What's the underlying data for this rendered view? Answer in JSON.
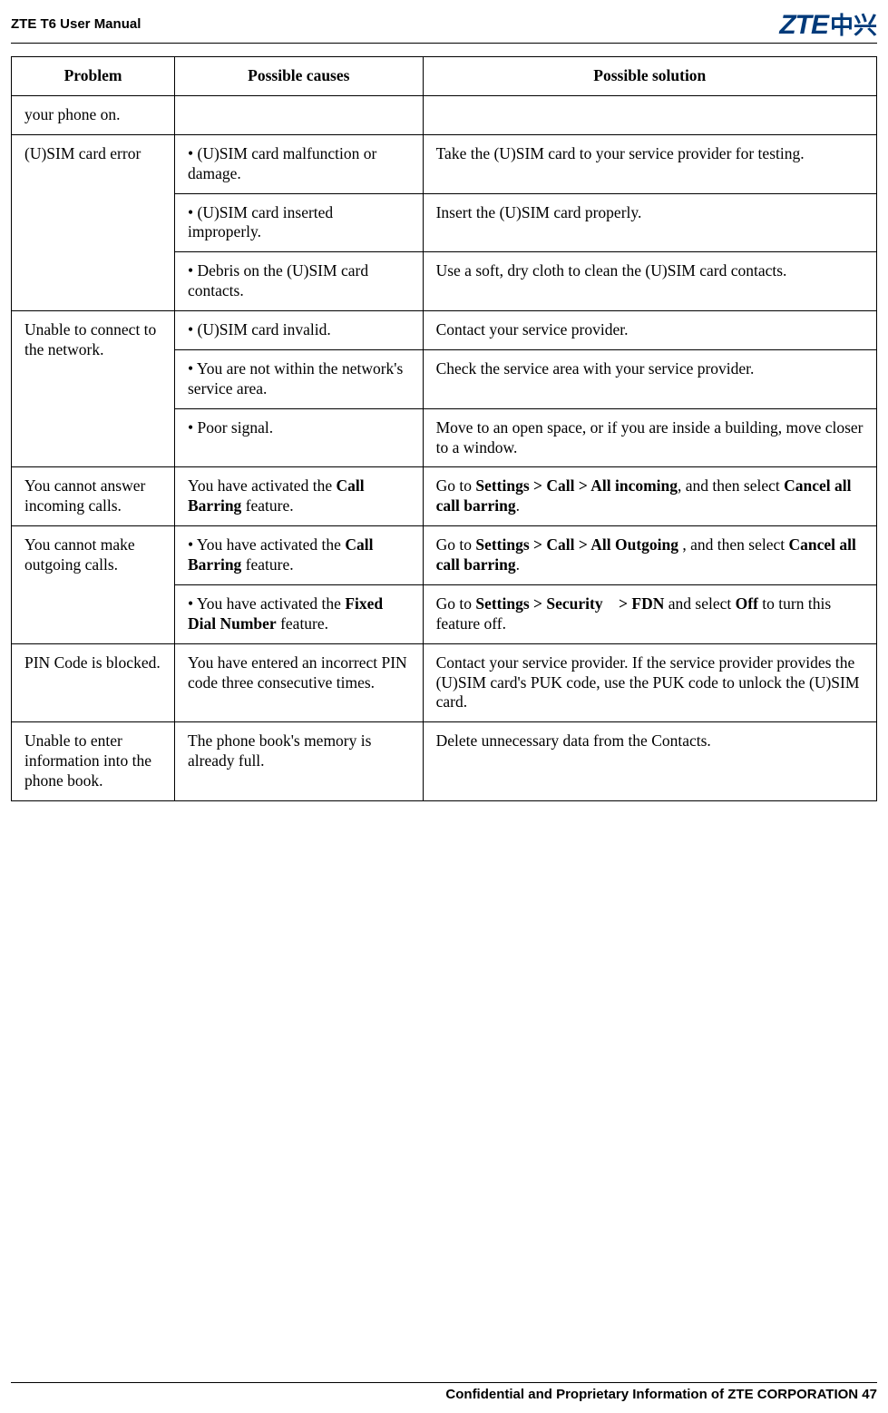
{
  "header": {
    "title": "ZTE T6 User Manual",
    "logo_latin": "ZTE",
    "logo_cn": "中兴"
  },
  "table": {
    "head": {
      "problem": "Problem",
      "causes": "Possible causes",
      "solution": "Possible solution"
    },
    "rows": {
      "r1": {
        "problem": "your phone on.",
        "cause": "",
        "solution": ""
      },
      "r2": {
        "problem": "(U)SIM card error",
        "c1": {
          "cause": "• (U)SIM card malfunction or damage.",
          "solution": "Take the (U)SIM card to your service provider for testing."
        },
        "c2": {
          "cause": "• (U)SIM card inserted improperly.",
          "solution": "Insert the (U)SIM card properly."
        },
        "c3": {
          "cause": "• Debris on the (U)SIM card contacts.",
          "solution": "Use a soft, dry cloth to clean the (U)SIM card contacts."
        }
      },
      "r3": {
        "problem": "Unable to connect to the network.",
        "c1": {
          "cause": "• (U)SIM card invalid.",
          "solution": "Contact your service provider."
        },
        "c2": {
          "cause": "• You are not within the network's service area.",
          "solution": "Check the service area with your service provider."
        },
        "c3": {
          "cause": "• Poor signal.",
          "solution": "Move to an open space, or if you are inside a building, move closer to a window."
        }
      },
      "r4": {
        "problem": "You cannot answer incoming calls.",
        "cause_pre": "You have activated the ",
        "cause_b": "Call Barring",
        "cause_post": " feature.",
        "sol_pre": "Go to ",
        "sol_b1": "Settings > Call > All incoming",
        "sol_mid": ", and then select ",
        "sol_b2": "Cancel all call barring",
        "sol_post": "."
      },
      "r5": {
        "problem": "You cannot make outgoing calls.",
        "c1": {
          "cause_pre": "• You have activated the ",
          "cause_b": "Call Barring",
          "cause_post": " feature.",
          "sol_pre": "Go to ",
          "sol_b1": "Settings > Call > All Outgoing ",
          "sol_mid": ", and then select ",
          "sol_b2": "Cancel all call barring",
          "sol_post": "."
        },
        "c2": {
          "cause_pre": "• You have activated the ",
          "cause_b": "Fixed Dial Number",
          "cause_post": " feature.",
          "sol_pre": "Go to ",
          "sol_b1": "Settings > Security > FDN",
          "sol_mid": " and select ",
          "sol_b2": "Off",
          "sol_post": " to turn this feature off."
        }
      },
      "r6": {
        "problem": "PIN Code is blocked.",
        "cause": "You have entered an incorrect PIN code three consecutive times.",
        "solution": "Contact your service provider. If the service provider provides the (U)SIM card's PUK code, use the PUK code to unlock the (U)SIM card."
      },
      "r7": {
        "problem": "Unable to enter information into the phone book.",
        "cause": "The phone book's memory is already full.",
        "solution": "Delete unnecessary data from the Contacts."
      }
    }
  },
  "footer": {
    "text": "Confidential and Proprietary Information of ZTE CORPORATION 47"
  }
}
